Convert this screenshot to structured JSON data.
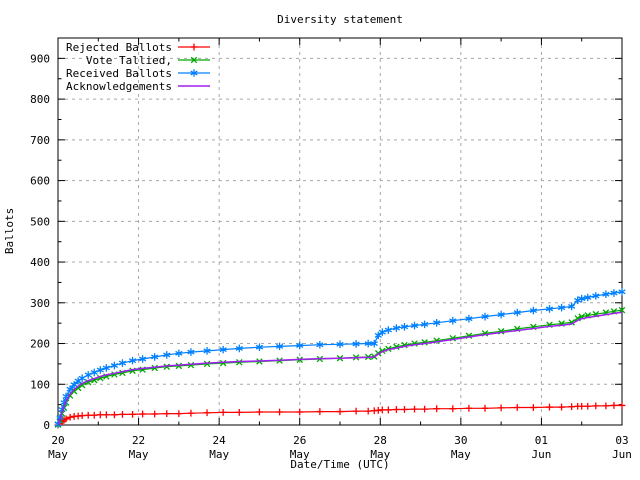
{
  "chart_data": {
    "type": "line",
    "title": "Diversity statement",
    "xlabel": "Date/Time (UTC)",
    "ylabel": "Ballots",
    "xlim_days": [
      0,
      14
    ],
    "ylim": [
      0,
      950
    ],
    "grid": true,
    "grid_color": "#a8a8a8",
    "frame_color": "#000000",
    "background": "#ffffff",
    "legend_position": "top-left-inside",
    "y_ticks": {
      "major_values": [
        0,
        100,
        200,
        300,
        400,
        500,
        600,
        700,
        800,
        900
      ],
      "major_labels": [
        "0",
        "100",
        "200",
        "300",
        "400",
        "500",
        "600",
        "700",
        "800",
        "900"
      ],
      "minor_values": [
        50,
        150,
        250,
        350,
        450,
        550,
        650,
        750,
        850
      ]
    },
    "x_ticks": {
      "major_days": [
        0,
        2,
        4,
        6,
        8,
        10,
        12,
        14
      ],
      "minor_days": [
        1,
        3,
        5,
        7,
        9,
        11,
        13
      ],
      "major_labels": [
        {
          "day": "20",
          "month": "May"
        },
        {
          "day": "22",
          "month": "May"
        },
        {
          "day": "24",
          "month": "May"
        },
        {
          "day": "26",
          "month": "May"
        },
        {
          "day": "28",
          "month": "May"
        },
        {
          "day": "30",
          "month": "May"
        },
        {
          "day": "01",
          "month": "Jun"
        },
        {
          "day": "03",
          "month": "Jun"
        }
      ]
    },
    "x_days_from_may20": [
      0,
      0.05,
      0.1,
      0.15,
      0.2,
      0.3,
      0.4,
      0.5,
      0.6,
      0.75,
      0.9,
      1.05,
      1.2,
      1.4,
      1.6,
      1.85,
      2.1,
      2.4,
      2.7,
      3.0,
      3.3,
      3.7,
      4.1,
      4.5,
      5.0,
      5.5,
      6.0,
      6.5,
      7.0,
      7.4,
      7.7,
      7.85,
      7.95,
      8.05,
      8.2,
      8.4,
      8.6,
      8.85,
      9.1,
      9.4,
      9.8,
      10.2,
      10.6,
      11.0,
      11.4,
      11.8,
      12.2,
      12.5,
      12.75,
      12.9,
      13.0,
      13.15,
      13.35,
      13.6,
      13.8,
      14.0
    ],
    "series": [
      {
        "name": "Rejected Ballots",
        "color": "#ff0000",
        "marker": "plus",
        "values": [
          0,
          4,
          8,
          12,
          15,
          19,
          21,
          22,
          23,
          24,
          24,
          25,
          25,
          25,
          26,
          26,
          27,
          27,
          28,
          28,
          29,
          30,
          31,
          31,
          32,
          32,
          32,
          33,
          33,
          34,
          34,
          35,
          36,
          37,
          37,
          38,
          38,
          39,
          39,
          40,
          40,
          41,
          41,
          42,
          43,
          43,
          44,
          44,
          45,
          46,
          46,
          46,
          47,
          47,
          48,
          48
        ]
      },
      {
        "name": "Vote Tallied,",
        "color": "#00a800",
        "marker": "cross",
        "values": [
          1,
          12,
          28,
          42,
          55,
          72,
          83,
          91,
          98,
          105,
          110,
          115,
          119,
          124,
          128,
          133,
          136,
          140,
          143,
          145,
          147,
          150,
          152,
          154,
          156,
          158,
          160,
          162,
          164,
          166,
          167,
          168,
          176,
          182,
          187,
          192,
          196,
          200,
          203,
          207,
          213,
          219,
          225,
          230,
          236,
          241,
          246,
          249,
          252,
          262,
          266,
          269,
          272,
          276,
          279,
          282
        ]
      },
      {
        "name": "Received Ballots",
        "color": "#0080ff",
        "marker": "asterisk",
        "values": [
          2,
          18,
          38,
          55,
          70,
          88,
          99,
          108,
          115,
          123,
          129,
          135,
          140,
          146,
          152,
          158,
          162,
          167,
          172,
          176,
          179,
          182,
          185,
          188,
          191,
          193,
          195,
          197,
          198,
          199,
          200,
          200,
          220,
          228,
          233,
          238,
          241,
          244,
          247,
          251,
          256,
          261,
          266,
          271,
          276,
          281,
          285,
          288,
          291,
          306,
          310,
          313,
          317,
          321,
          324,
          327
        ]
      },
      {
        "name": "Acknowledgements",
        "color": "#a020f0",
        "marker": "none",
        "values": [
          1,
          14,
          31,
          46,
          59,
          76,
          87,
          95,
          102,
          109,
          114,
          119,
          123,
          127,
          131,
          136,
          139,
          142,
          145,
          147,
          149,
          152,
          154,
          156,
          157,
          159,
          161,
          163,
          164,
          165,
          166,
          167,
          174,
          180,
          185,
          189,
          193,
          197,
          200,
          204,
          210,
          216,
          222,
          227,
          232,
          237,
          242,
          245,
          248,
          257,
          261,
          264,
          267,
          271,
          274,
          277
        ]
      }
    ]
  }
}
